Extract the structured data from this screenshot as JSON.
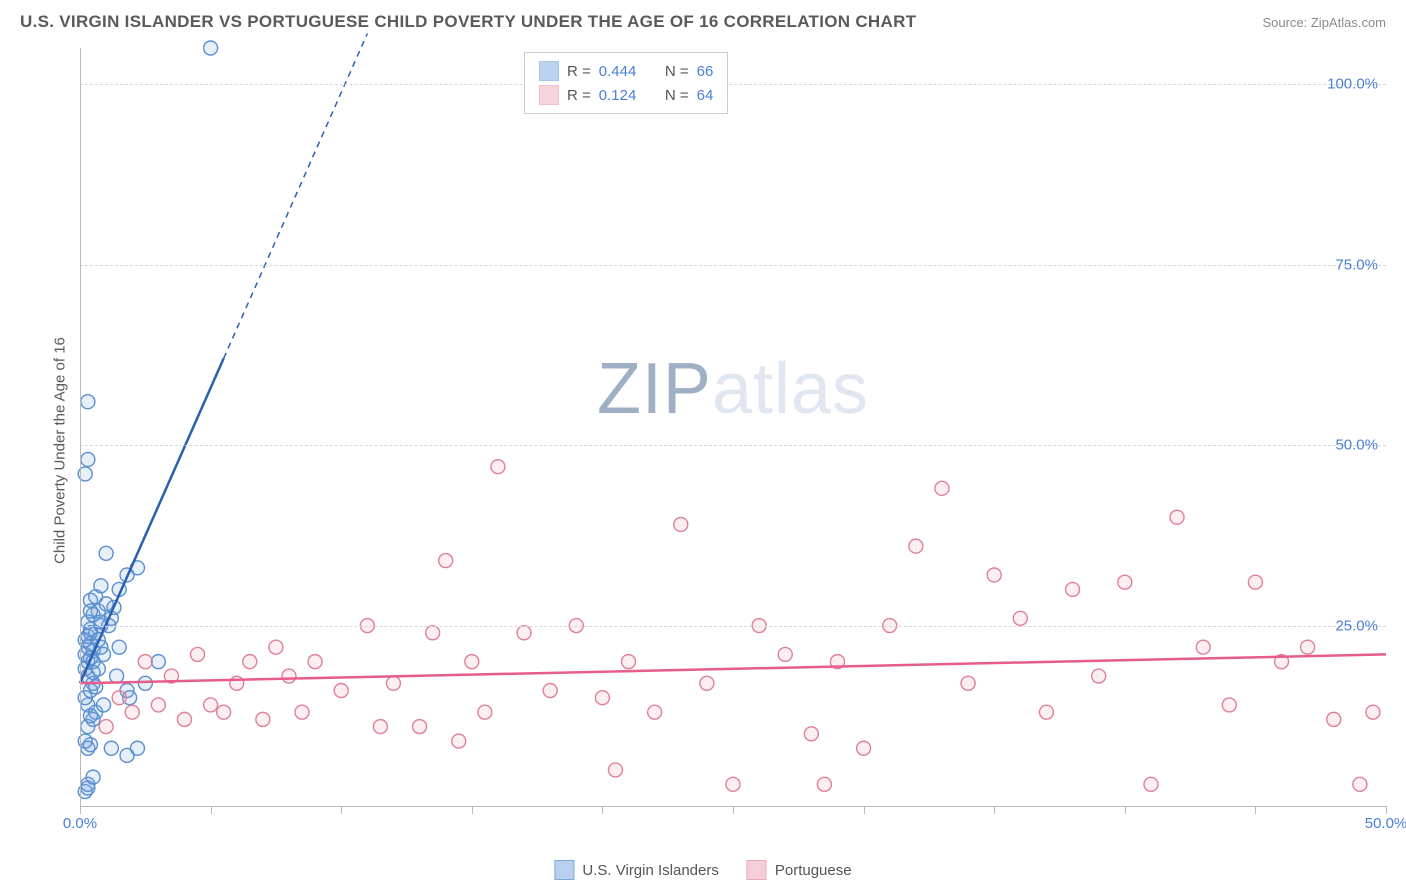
{
  "header": {
    "title": "U.S. VIRGIN ISLANDER VS PORTUGUESE CHILD POVERTY UNDER THE AGE OF 16 CORRELATION CHART",
    "source": "Source: ZipAtlas.com"
  },
  "y_label": "Child Poverty Under the Age of 16",
  "watermark": {
    "prefix": "ZIP",
    "suffix": "atlas"
  },
  "chart": {
    "type": "scatter",
    "xlim": [
      0,
      50
    ],
    "ylim": [
      0,
      105
    ],
    "y_ticks": [
      25,
      50,
      75,
      100
    ],
    "y_tick_labels": [
      "25.0%",
      "50.0%",
      "75.0%",
      "100.0%"
    ],
    "x_ticks_minor": [
      0,
      5,
      10,
      15,
      20,
      25,
      30,
      35,
      40,
      45,
      50
    ],
    "x_tick_labels": {
      "0": "0.0%",
      "50": "50.0%"
    },
    "background_color": "#ffffff",
    "grid_color": "#d8d8d8",
    "axis_color": "#bababa",
    "tick_label_color": "#4a7fd6",
    "marker_radius": 7,
    "marker_fill_opacity": 0.18,
    "marker_stroke_width": 1.4,
    "series": [
      {
        "name": "U.S. Virgin Islanders",
        "color": "#7aa8e0",
        "stroke": "#5a8fd0",
        "trend_color": "#2b5fb0",
        "trend": {
          "x1": 0.0,
          "y1": 17.0,
          "x2": 5.5,
          "y2": 62.0,
          "dash_ext_x": 11.0,
          "dash_ext_y": 107.0
        },
        "r_value": "0.444",
        "n_value": "66",
        "points": [
          [
            0.2,
            2.0
          ],
          [
            0.3,
            2.5
          ],
          [
            0.3,
            8.0
          ],
          [
            0.4,
            8.5
          ],
          [
            0.2,
            9.0
          ],
          [
            0.5,
            12.0
          ],
          [
            0.3,
            14.0
          ],
          [
            0.2,
            15.0
          ],
          [
            0.4,
            16.0
          ],
          [
            0.3,
            18.0
          ],
          [
            0.2,
            19.0
          ],
          [
            0.3,
            20.0
          ],
          [
            0.4,
            20.5
          ],
          [
            0.2,
            21.0
          ],
          [
            0.5,
            21.5
          ],
          [
            0.3,
            22.0
          ],
          [
            0.4,
            22.5
          ],
          [
            0.2,
            23.0
          ],
          [
            0.3,
            23.5
          ],
          [
            0.6,
            24.0
          ],
          [
            0.4,
            24.5
          ],
          [
            0.8,
            25.0
          ],
          [
            0.3,
            25.5
          ],
          [
            1.2,
            26.0
          ],
          [
            0.5,
            26.5
          ],
          [
            0.7,
            27.0
          ],
          [
            1.0,
            28.0
          ],
          [
            0.4,
            28.5
          ],
          [
            1.5,
            30.0
          ],
          [
            1.8,
            32.0
          ],
          [
            2.2,
            33.0
          ],
          [
            1.0,
            35.0
          ],
          [
            0.2,
            46.0
          ],
          [
            0.3,
            48.0
          ],
          [
            0.3,
            56.0
          ],
          [
            5.0,
            105.0
          ],
          [
            0.6,
            13.0
          ],
          [
            1.2,
            8.0
          ],
          [
            1.8,
            16.0
          ],
          [
            0.5,
            20.0
          ],
          [
            0.8,
            22.0
          ],
          [
            0.4,
            24.0
          ],
          [
            1.1,
            25.0
          ],
          [
            0.7,
            19.0
          ],
          [
            0.9,
            21.0
          ],
          [
            2.5,
            17.0
          ],
          [
            2.2,
            8.0
          ],
          [
            0.3,
            3.0
          ],
          [
            0.5,
            4.0
          ],
          [
            1.8,
            7.0
          ],
          [
            1.5,
            22.0
          ],
          [
            1.9,
            15.0
          ],
          [
            0.4,
            27.0
          ],
          [
            1.3,
            27.5
          ],
          [
            0.6,
            29.0
          ],
          [
            0.8,
            30.5
          ],
          [
            0.5,
            17.0
          ],
          [
            0.7,
            23.0
          ],
          [
            1.4,
            18.0
          ],
          [
            0.9,
            14.0
          ],
          [
            0.3,
            11.0
          ],
          [
            0.4,
            12.5
          ],
          [
            0.6,
            16.5
          ],
          [
            0.5,
            18.5
          ],
          [
            0.8,
            25.5
          ],
          [
            3.0,
            20.0
          ]
        ]
      },
      {
        "name": "Portuguese",
        "color": "#f0a8b8",
        "stroke": "#e08098",
        "trend_color": "#e75d8a",
        "trend": {
          "x1": 0.0,
          "y1": 17.0,
          "x2": 50.0,
          "y2": 21.0
        },
        "r_value": "0.124",
        "n_value": "64",
        "points": [
          [
            1.0,
            11.0
          ],
          [
            1.5,
            15.0
          ],
          [
            2.0,
            13.0
          ],
          [
            2.5,
            20.0
          ],
          [
            3.0,
            14.0
          ],
          [
            3.5,
            18.0
          ],
          [
            4.0,
            12.0
          ],
          [
            4.5,
            21.0
          ],
          [
            5.0,
            14.0
          ],
          [
            5.5,
            13.0
          ],
          [
            6.0,
            17.0
          ],
          [
            6.5,
            20.0
          ],
          [
            7.0,
            12.0
          ],
          [
            7.5,
            22.0
          ],
          [
            8.0,
            18.0
          ],
          [
            8.5,
            13.0
          ],
          [
            9.0,
            20.0
          ],
          [
            10.0,
            16.0
          ],
          [
            11.0,
            25.0
          ],
          [
            12.0,
            17.0
          ],
          [
            13.0,
            11.0
          ],
          [
            13.5,
            24.0
          ],
          [
            14.0,
            34.0
          ],
          [
            14.5,
            9.0
          ],
          [
            15.0,
            20.0
          ],
          [
            15.5,
            13.0
          ],
          [
            16.0,
            47.0
          ],
          [
            17.0,
            24.0
          ],
          [
            18.0,
            16.0
          ],
          [
            19.0,
            25.0
          ],
          [
            20.0,
            15.0
          ],
          [
            20.5,
            5.0
          ],
          [
            21.0,
            20.0
          ],
          [
            22.0,
            13.0
          ],
          [
            23.0,
            39.0
          ],
          [
            24.0,
            17.0
          ],
          [
            25.0,
            3.0
          ],
          [
            26.0,
            25.0
          ],
          [
            27.0,
            21.0
          ],
          [
            28.0,
            10.0
          ],
          [
            29.0,
            20.0
          ],
          [
            30.0,
            8.0
          ],
          [
            31.0,
            25.0
          ],
          [
            32.0,
            36.0
          ],
          [
            33.0,
            44.0
          ],
          [
            34.0,
            17.0
          ],
          [
            35.0,
            32.0
          ],
          [
            36.0,
            26.0
          ],
          [
            37.0,
            13.0
          ],
          [
            38.0,
            30.0
          ],
          [
            39.0,
            18.0
          ],
          [
            40.0,
            31.0
          ],
          [
            41.0,
            3.0
          ],
          [
            42.0,
            40.0
          ],
          [
            43.0,
            22.0
          ],
          [
            44.0,
            14.0
          ],
          [
            45.0,
            31.0
          ],
          [
            46.0,
            20.0
          ],
          [
            47.0,
            22.0
          ],
          [
            48.0,
            12.0
          ],
          [
            49.0,
            3.0
          ],
          [
            49.5,
            13.0
          ],
          [
            11.5,
            11.0
          ],
          [
            28.5,
            3.0
          ]
        ]
      }
    ]
  },
  "legend": {
    "r_label": "R =",
    "n_label": "N =",
    "bottom": [
      {
        "label": "U.S. Virgin Islanders",
        "fill": "#b8d0ee",
        "stroke": "#7aa8e0"
      },
      {
        "label": "Portuguese",
        "fill": "#f5cfd8",
        "stroke": "#f0a8b8"
      }
    ]
  }
}
